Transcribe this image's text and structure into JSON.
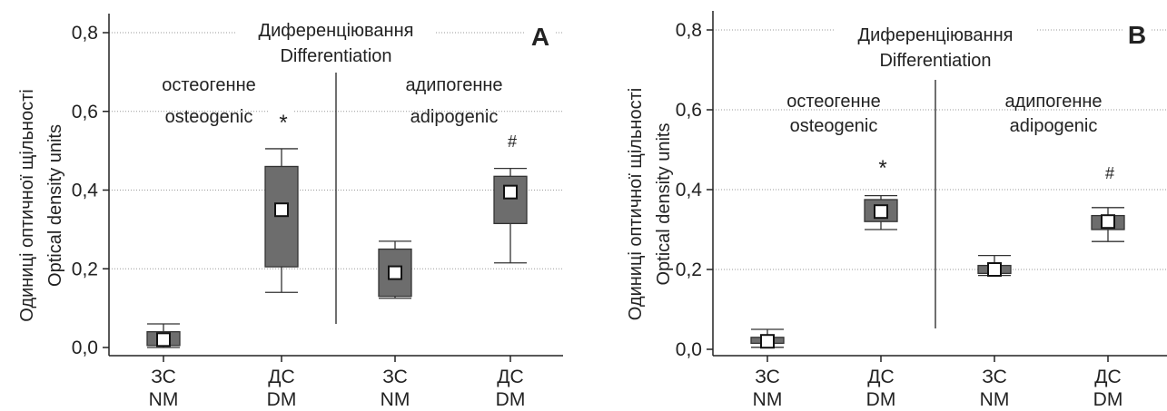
{
  "ylabel_line1": "Одиниці оптичної щільності",
  "ylabel_line2": "Optical density units",
  "chart_data": [
    {
      "type": "box",
      "panel_letter": "A",
      "title_line1": "Диференціювання",
      "title_line2": "Differentiation",
      "ylim": [
        0,
        0.85
      ],
      "yticks": [
        0,
        0.2,
        0.4,
        0.6,
        0.8
      ],
      "ytick_labels": [
        "0,0",
        "0,2",
        "0,4",
        "0,6",
        "0,8"
      ],
      "grid": true,
      "categories": [
        {
          "line1": "ЗС",
          "line2": "NM"
        },
        {
          "line1": "ДС",
          "line2": "DM"
        },
        {
          "line1": "ЗС",
          "line2": "NM"
        },
        {
          "line1": "ДС",
          "line2": "DM"
        }
      ],
      "groups": [
        {
          "line1": "остеогенне",
          "line2": "osteogenic"
        },
        {
          "line1": "адипогенне",
          "line2": "adipogenic"
        }
      ],
      "boxes": [
        {
          "mean": 0.02,
          "q1": 0.005,
          "q3": 0.04,
          "min": 0.0,
          "max": 0.06,
          "marker": ""
        },
        {
          "mean": 0.35,
          "q1": 0.205,
          "q3": 0.46,
          "min": 0.14,
          "max": 0.505,
          "marker": "*"
        },
        {
          "mean": 0.19,
          "q1": 0.13,
          "q3": 0.25,
          "min": 0.125,
          "max": 0.27,
          "marker": ""
        },
        {
          "mean": 0.395,
          "q1": 0.315,
          "q3": 0.435,
          "min": 0.215,
          "max": 0.455,
          "marker": "#"
        }
      ]
    },
    {
      "type": "box",
      "panel_letter": "B",
      "title_line1": "Диференціювання",
      "title_line2": "Differentiation",
      "ylim": [
        0,
        0.85
      ],
      "yticks": [
        0,
        0.2,
        0.4,
        0.6,
        0.8
      ],
      "ytick_labels": [
        "0,0",
        "0,2",
        "0,4",
        "0,6",
        "0,8"
      ],
      "grid": true,
      "categories": [
        {
          "line1": "ЗС",
          "line2": "NM"
        },
        {
          "line1": "ДС",
          "line2": "DM"
        },
        {
          "line1": "ЗС",
          "line2": "NM"
        },
        {
          "line1": "ДС",
          "line2": "DM"
        }
      ],
      "groups": [
        {
          "line1": "остеогенне",
          "line2": "osteogenic"
        },
        {
          "line1": "адипогенне",
          "line2": "adipogenic"
        }
      ],
      "boxes": [
        {
          "mean": 0.02,
          "q1": 0.015,
          "q3": 0.03,
          "min": 0.005,
          "max": 0.05,
          "marker": ""
        },
        {
          "mean": 0.345,
          "q1": 0.32,
          "q3": 0.375,
          "min": 0.3,
          "max": 0.385,
          "marker": "*"
        },
        {
          "mean": 0.2,
          "q1": 0.19,
          "q3": 0.21,
          "min": 0.185,
          "max": 0.235,
          "marker": ""
        },
        {
          "mean": 0.32,
          "q1": 0.3,
          "q3": 0.335,
          "min": 0.27,
          "max": 0.355,
          "marker": "#"
        }
      ]
    }
  ]
}
